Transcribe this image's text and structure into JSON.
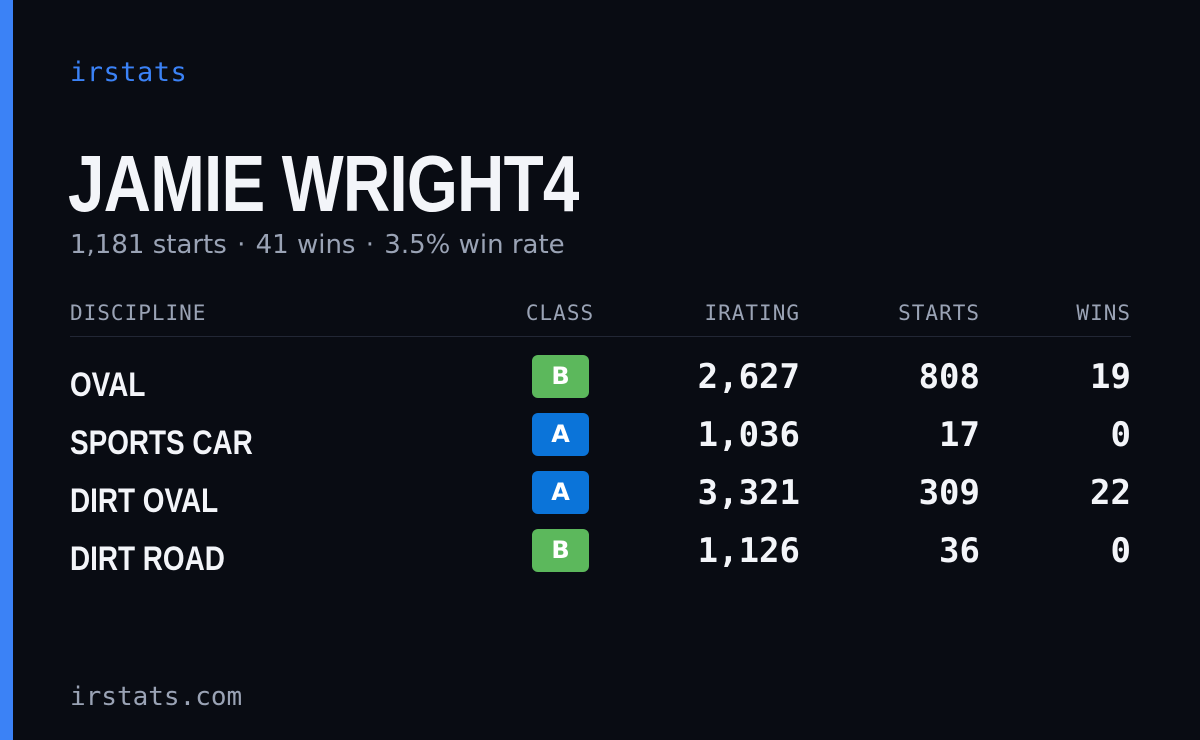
{
  "brand": "irstats",
  "driver": {
    "name": "JAMIE WRIGHT4",
    "starts_text": "1,181 starts",
    "separator": "·",
    "wins_text": "41 wins",
    "win_rate_text": "3.5% win rate"
  },
  "table": {
    "headers": {
      "discipline": "DISCIPLINE",
      "class": "CLASS",
      "irating": "IRATING",
      "starts": "STARTS",
      "wins": "WINS"
    },
    "rows": [
      {
        "discipline": "OVAL",
        "class": "B",
        "class_color": "#5cb85c",
        "irating": "2,627",
        "starts": "808",
        "wins": "19"
      },
      {
        "discipline": "SPORTS CAR",
        "class": "A",
        "class_color": "#0b74d9",
        "irating": "1,036",
        "starts": "17",
        "wins": "0"
      },
      {
        "discipline": "DIRT OVAL",
        "class": "A",
        "class_color": "#0b74d9",
        "irating": "3,321",
        "starts": "309",
        "wins": "22"
      },
      {
        "discipline": "DIRT ROAD",
        "class": "B",
        "class_color": "#5cb85c",
        "irating": "1,126",
        "starts": "36",
        "wins": "0"
      }
    ]
  },
  "footer": "irstats.com",
  "colors": {
    "accent": "#3b82f6",
    "background": "#090c13",
    "muted_text": "#9aa3b5",
    "class_a": "#0b74d9",
    "class_b": "#5cb85c"
  }
}
